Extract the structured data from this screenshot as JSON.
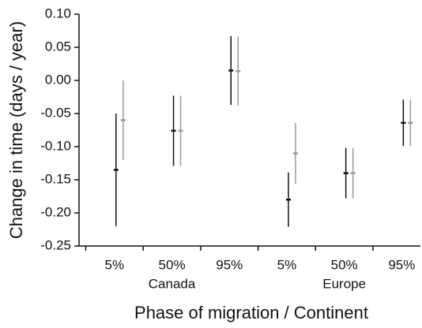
{
  "chart_data": {
    "type": "errorbar",
    "xlabel": "Phase of migration / Continent",
    "ylabel": "Change in time (days / year)",
    "categories": [
      "5%",
      "50%",
      "95%",
      "5%",
      "50%",
      "95%"
    ],
    "group_labels": [
      "Canada",
      "Europe"
    ],
    "ylim": [
      -0.25,
      0.1
    ],
    "yticks": [
      {
        "value": 0.1,
        "label": "0.10"
      },
      {
        "value": 0.05,
        "label": "0.05"
      },
      {
        "value": 0,
        "label": "0.00"
      },
      {
        "value": -0.05,
        "label": "-0.05"
      },
      {
        "value": -0.1,
        "label": "-0.10"
      },
      {
        "value": -0.15,
        "label": "-0.15"
      },
      {
        "value": -0.2,
        "label": "-0.20"
      },
      {
        "value": -0.25,
        "label": "-0.25"
      }
    ],
    "series": [
      {
        "color": "#111111",
        "values": [
          -0.135,
          -0.076,
          0.015,
          -0.18,
          -0.14,
          -0.064
        ],
        "errors": [
          0.085,
          0.053,
          0.052,
          0.041,
          0.038,
          0.035
        ]
      },
      {
        "color": "#999999",
        "values": [
          -0.06,
          -0.076,
          0.014,
          -0.11,
          -0.14,
          -0.064
        ],
        "errors": [
          0.06,
          0.053,
          0.052,
          0.046,
          0.038,
          0.035
        ]
      }
    ]
  }
}
